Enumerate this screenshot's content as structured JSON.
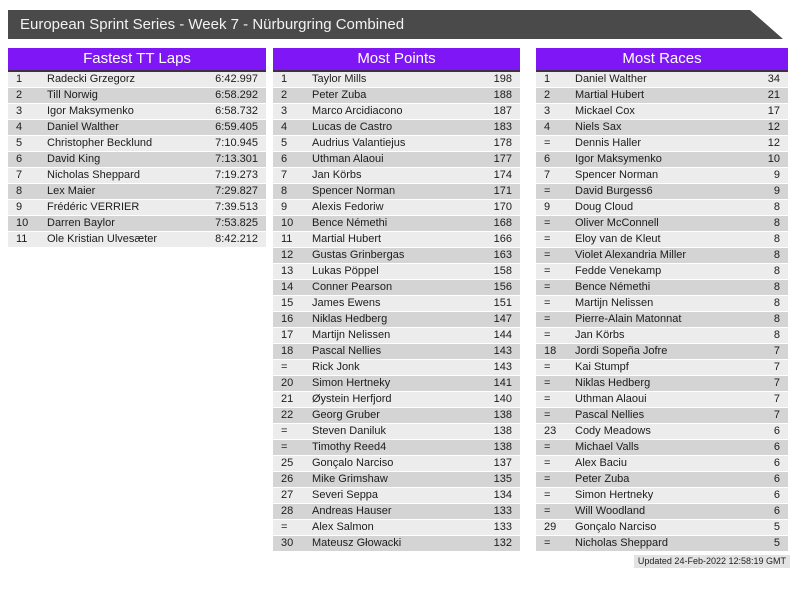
{
  "title_bar": {
    "text": "European Sprint Series - Week 7 - Nürburgring Combined"
  },
  "footer": {
    "updated": "Updated 24-Feb-2022 12:58:19 GMT"
  },
  "colors": {
    "accent": "#7e16f5",
    "accent_dark": "#3f3142",
    "titlebar_bg": "#4a4a4a",
    "row_odd": "#ececec",
    "row_even": "#d4d4d4"
  },
  "tables": [
    {
      "title": "Fastest TT Laps",
      "rows": [
        {
          "rank": "1",
          "name": "Radecki Grzegorz",
          "value": "6:42.997"
        },
        {
          "rank": "2",
          "name": "Till Norwig",
          "value": "6:58.292"
        },
        {
          "rank": "3",
          "name": "Igor Maksymenko",
          "value": "6:58.732"
        },
        {
          "rank": "4",
          "name": "Daniel Walther",
          "value": "6:59.405"
        },
        {
          "rank": "5",
          "name": "Christopher Becklund",
          "value": "7:10.945"
        },
        {
          "rank": "6",
          "name": "David King",
          "value": "7:13.301"
        },
        {
          "rank": "7",
          "name": "Nicholas Sheppard",
          "value": "7:19.273"
        },
        {
          "rank": "8",
          "name": "Lex Maier",
          "value": "7:29.827"
        },
        {
          "rank": "9",
          "name": "Frédéric VERRIER",
          "value": "7:39.513"
        },
        {
          "rank": "10",
          "name": "Darren Baylor",
          "value": "7:53.825"
        },
        {
          "rank": "11",
          "name": "Ole Kristian Ulvesæter",
          "value": "8:42.212"
        }
      ]
    },
    {
      "title": "Most Points",
      "rows": [
        {
          "rank": "1",
          "name": "Taylor Mills",
          "value": "198"
        },
        {
          "rank": "2",
          "name": "Peter Zuba",
          "value": "188"
        },
        {
          "rank": "3",
          "name": "Marco Arcidiacono",
          "value": "187"
        },
        {
          "rank": "4",
          "name": "Lucas de Castro",
          "value": "183"
        },
        {
          "rank": "5",
          "name": "Audrius Valantiejus",
          "value": "178"
        },
        {
          "rank": "6",
          "name": "Uthman Alaoui",
          "value": "177"
        },
        {
          "rank": "7",
          "name": "Jan Körbs",
          "value": "174"
        },
        {
          "rank": "8",
          "name": "Spencer Norman",
          "value": "171"
        },
        {
          "rank": "9",
          "name": "Alexis Fedoriw",
          "value": "170"
        },
        {
          "rank": "10",
          "name": "Bence Némethi",
          "value": "168"
        },
        {
          "rank": "11",
          "name": "Martial Hubert",
          "value": "166"
        },
        {
          "rank": "12",
          "name": "Gustas Grinbergas",
          "value": "163"
        },
        {
          "rank": "13",
          "name": "Lukas Pöppel",
          "value": "158"
        },
        {
          "rank": "14",
          "name": "Conner Pearson",
          "value": "156"
        },
        {
          "rank": "15",
          "name": "James Ewens",
          "value": "151"
        },
        {
          "rank": "16",
          "name": "Niklas Hedberg",
          "value": "147"
        },
        {
          "rank": "17",
          "name": "Martijn Nelissen",
          "value": "144"
        },
        {
          "rank": "18",
          "name": "Pascal Nellies",
          "value": "143"
        },
        {
          "rank": "=",
          "name": "Rick Jonk",
          "value": "143"
        },
        {
          "rank": "20",
          "name": "Simon Hertneky",
          "value": "141"
        },
        {
          "rank": "21",
          "name": "Øystein Herfjord",
          "value": "140"
        },
        {
          "rank": "22",
          "name": "Georg Gruber",
          "value": "138"
        },
        {
          "rank": "=",
          "name": "Steven Daniluk",
          "value": "138"
        },
        {
          "rank": "=",
          "name": "Timothy Reed4",
          "value": "138"
        },
        {
          "rank": "25",
          "name": "Gonçalo Narciso",
          "value": "137"
        },
        {
          "rank": "26",
          "name": "Mike Grimshaw",
          "value": "135"
        },
        {
          "rank": "27",
          "name": "Severi Seppa",
          "value": "134"
        },
        {
          "rank": "28",
          "name": "Andreas Hauser",
          "value": "133"
        },
        {
          "rank": "=",
          "name": "Alex Salmon",
          "value": "133"
        },
        {
          "rank": "30",
          "name": "Mateusz Głowacki",
          "value": "132"
        }
      ]
    },
    {
      "title": "Most Races",
      "rows": [
        {
          "rank": "1",
          "name": "Daniel Walther",
          "value": "34"
        },
        {
          "rank": "2",
          "name": "Martial Hubert",
          "value": "21"
        },
        {
          "rank": "3",
          "name": "Mickael Cox",
          "value": "17"
        },
        {
          "rank": "4",
          "name": "Niels Sax",
          "value": "12"
        },
        {
          "rank": "=",
          "name": "Dennis Haller",
          "value": "12"
        },
        {
          "rank": "6",
          "name": "Igor Maksymenko",
          "value": "10"
        },
        {
          "rank": "7",
          "name": "Spencer Norman",
          "value": "9"
        },
        {
          "rank": "=",
          "name": "David Burgess6",
          "value": "9"
        },
        {
          "rank": "9",
          "name": "Doug Cloud",
          "value": "8"
        },
        {
          "rank": "=",
          "name": "Oliver McConnell",
          "value": "8"
        },
        {
          "rank": "=",
          "name": "Eloy van de Kleut",
          "value": "8"
        },
        {
          "rank": "=",
          "name": "Violet Alexandria Miller",
          "value": "8"
        },
        {
          "rank": "=",
          "name": "Fedde Venekamp",
          "value": "8"
        },
        {
          "rank": "=",
          "name": "Bence Némethi",
          "value": "8"
        },
        {
          "rank": "=",
          "name": "Martijn Nelissen",
          "value": "8"
        },
        {
          "rank": "=",
          "name": "Pierre-Alain Matonnat",
          "value": "8"
        },
        {
          "rank": "=",
          "name": "Jan Körbs",
          "value": "8"
        },
        {
          "rank": "18",
          "name": "Jordi Sopeña Jofre",
          "value": "7"
        },
        {
          "rank": "=",
          "name": "Kai Stumpf",
          "value": "7"
        },
        {
          "rank": "=",
          "name": "Niklas Hedberg",
          "value": "7"
        },
        {
          "rank": "=",
          "name": "Uthman Alaoui",
          "value": "7"
        },
        {
          "rank": "=",
          "name": "Pascal Nellies",
          "value": "7"
        },
        {
          "rank": "23",
          "name": "Cody Meadows",
          "value": "6"
        },
        {
          "rank": "=",
          "name": "Michael Valls",
          "value": "6"
        },
        {
          "rank": "=",
          "name": "Alex Baciu",
          "value": "6"
        },
        {
          "rank": "=",
          "name": "Peter Zuba",
          "value": "6"
        },
        {
          "rank": "=",
          "name": "Simon Hertneky",
          "value": "6"
        },
        {
          "rank": "=",
          "name": "Will Woodland",
          "value": "6"
        },
        {
          "rank": "29",
          "name": "Gonçalo Narciso",
          "value": "5"
        },
        {
          "rank": "=",
          "name": "Nicholas Sheppard",
          "value": "5"
        }
      ]
    }
  ]
}
